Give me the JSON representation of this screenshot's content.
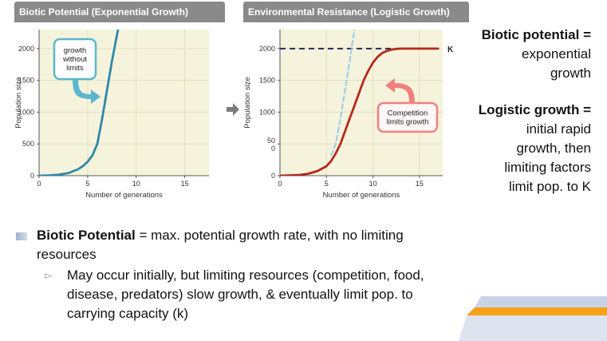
{
  "panels": {
    "left": {
      "header": "Biotic Potential  (Exponential Growth)"
    },
    "right": {
      "header": "Environmental Resistance  (Logistic Growth)"
    }
  },
  "chart_data": [
    {
      "type": "line",
      "title": "Biotic Potential  (Exponential Growth)",
      "xlabel": "Number of generations",
      "ylabel": "Population size",
      "xlim": [
        0,
        17.5
      ],
      "ylim": [
        0,
        2300
      ],
      "xticks": [
        "0",
        "5",
        "10",
        "15"
      ],
      "yticks": [
        "0",
        "500",
        "1000",
        "1500",
        "2000"
      ],
      "grid": true,
      "series": [
        {
          "x": [
            0,
            1,
            2,
            3,
            4,
            4.5,
            5,
            5.5,
            6,
            6.5,
            7,
            7.5,
            8,
            8.2
          ],
          "y": [
            0,
            5,
            15,
            40,
            100,
            150,
            220,
            320,
            500,
            900,
            1350,
            1800,
            2200,
            2350
          ],
          "color": "#2e88a8"
        }
      ],
      "annotations": [
        {
          "text": "growth without limits"
        }
      ]
    },
    {
      "type": "line",
      "title": "Environmental Resistance  (Logistic Growth)",
      "xlabel": "Number of generations",
      "ylabel": "Population size",
      "xlim": [
        0,
        17.5
      ],
      "ylim": [
        0,
        2300
      ],
      "xticks": [
        "0",
        "5",
        "10",
        "15"
      ],
      "yticks": [
        "0",
        "50\n0",
        "1000",
        "1500",
        "2000"
      ],
      "grid": true,
      "carrying_capacity": {
        "value": 2000,
        "label": "K"
      },
      "series": [
        {
          "x": [
            0,
            2,
            3,
            4,
            5,
            5.5,
            6,
            6.5,
            7,
            7.5,
            8,
            8.5,
            9,
            9.5,
            10,
            10.5,
            11,
            11.5,
            12,
            12.5,
            13,
            14,
            15,
            17
          ],
          "y": [
            0,
            10,
            30,
            70,
            150,
            230,
            350,
            500,
            700,
            900,
            1100,
            1300,
            1500,
            1650,
            1780,
            1870,
            1930,
            1965,
            1985,
            1995,
            2000,
            2000,
            2000,
            2000
          ],
          "color": "#b5281e"
        },
        {
          "x": [
            5.5,
            6,
            6.5,
            7,
            7.5,
            8
          ],
          "y": [
            320,
            500,
            900,
            1350,
            1800,
            2300
          ],
          "color": "#9fd0e8",
          "dashed": true
        }
      ],
      "annotations": [
        {
          "text": "Competition limits growth"
        }
      ]
    }
  ],
  "sidenotes": {
    "n1_bold": "Biotic potential =",
    "n1_rest1": "exponential",
    "n1_rest2": "growth",
    "n2_bold": "Logistic growth =",
    "n2_rest1": "initial rapid",
    "n2_rest2": "growth, then",
    "n2_rest3": "limiting factors",
    "n2_rest4": "limit pop. to K"
  },
  "bullets": {
    "main_bold": "Biotic Potential",
    "main_rest": " = max. potential growth rate, with no limiting resources",
    "sub_marker": "▻",
    "sub_text": "May occur initially, but limiting resources (competition, food, disease, predators) slow growth, & eventually limit pop. to carrying capacity (k)"
  },
  "colors": {
    "exponential": "#2e88a8",
    "logistic": "#b5281e",
    "k_line": "#232b5c",
    "accent_orange": "#f6a01a",
    "accent_blue": "#c8d3e6"
  }
}
